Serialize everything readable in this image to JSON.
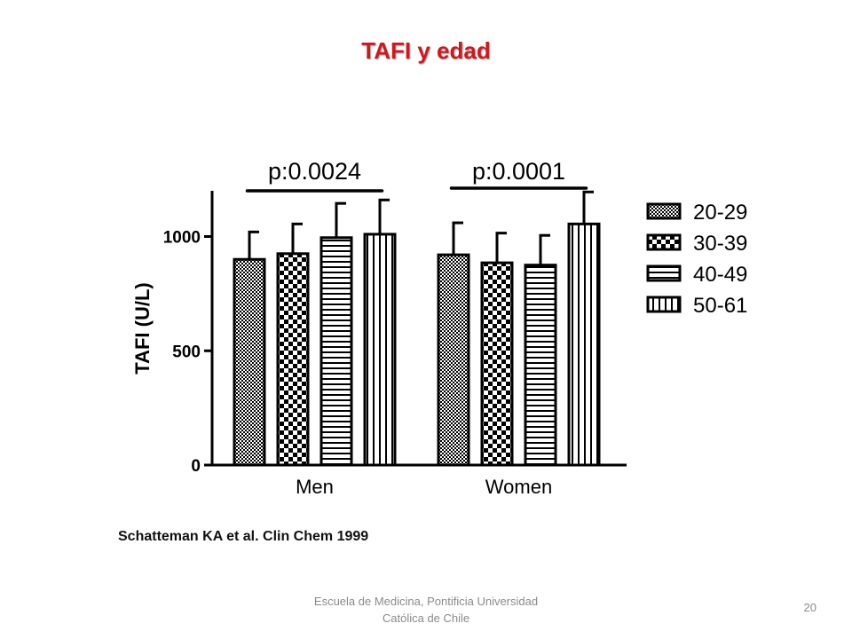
{
  "slide": {
    "title": "TAFI y edad",
    "citation": "Schatteman KA et al. Clin Chem 1999",
    "footer": "Escuela de Medicina, Pontificia Universidad Católica de Chile",
    "page_number": "20"
  },
  "chart_data": {
    "type": "bar",
    "ylabel": "TAFI (U/L)",
    "xlabel": "",
    "ylim": [
      0,
      1200
    ],
    "yticks": [
      0,
      500,
      1000
    ],
    "categories": [
      "Men",
      "Women"
    ],
    "series": [
      {
        "name": "20-29",
        "values": [
          900,
          920
        ],
        "errors": [
          120,
          140
        ],
        "pattern": "dense-check"
      },
      {
        "name": "30-39",
        "values": [
          925,
          885
        ],
        "errors": [
          130,
          130
        ],
        "pattern": "checker"
      },
      {
        "name": "40-49",
        "values": [
          995,
          875
        ],
        "errors": [
          150,
          130
        ],
        "pattern": "horizontal-lines"
      },
      {
        "name": "50-61",
        "values": [
          1010,
          1055
        ],
        "errors": [
          150,
          140
        ],
        "pattern": "vertical-lines"
      }
    ],
    "annotations": [
      {
        "text": "p:0.0024",
        "category": "Men"
      },
      {
        "text": "p:0.0001",
        "category": "Women"
      }
    ],
    "legend_position": "right",
    "grid": false,
    "colors": {
      "stroke": "#000000",
      "fill": "#ffffff"
    }
  }
}
